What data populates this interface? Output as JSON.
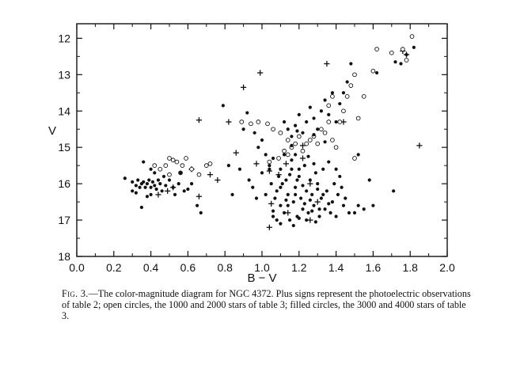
{
  "caption": {
    "label": "Fig. 3.",
    "text": "—The color-magnitude diagram for NGC 4372. Plus signs represent the photoelectric observations of table 2; open circles, the 1000 and 2000 stars of table 3; filled circles, the 3000 and 4000 stars of table 3."
  },
  "chart_data": {
    "type": "scatter",
    "xlabel": "B − V",
    "ylabel": "V",
    "xlim": [
      0.0,
      2.0
    ],
    "ylim": [
      18,
      11.6
    ],
    "y_inverted": true,
    "grid": false,
    "x_ticks": [
      "0.0",
      "0.2",
      "0.4",
      "0.6",
      "0.8",
      "1.0",
      "1.2",
      "1.4",
      "1.6",
      "1.8",
      "2.0"
    ],
    "y_ticks": [
      "12",
      "13",
      "14",
      "15",
      "16",
      "17",
      "18"
    ],
    "series": [
      {
        "marker": "plus",
        "points": [
          [
            0.66,
            14.25
          ],
          [
            0.82,
            14.3
          ],
          [
            0.9,
            13.35
          ],
          [
            0.99,
            12.95
          ],
          [
            0.86,
            15.15
          ],
          [
            0.97,
            15.45
          ],
          [
            0.72,
            15.75
          ],
          [
            0.76,
            15.9
          ],
          [
            0.66,
            16.35
          ],
          [
            0.62,
            15.6
          ],
          [
            0.44,
            16.3
          ],
          [
            0.49,
            16.2
          ],
          [
            0.52,
            16.1
          ],
          [
            1.04,
            15.65
          ],
          [
            1.09,
            15.75
          ],
          [
            1.22,
            15.3
          ],
          [
            1.26,
            16.0
          ],
          [
            1.3,
            16.5
          ],
          [
            1.26,
            17.0
          ],
          [
            1.14,
            16.8
          ],
          [
            1.05,
            16.55
          ],
          [
            1.04,
            17.2
          ],
          [
            1.22,
            14.95
          ],
          [
            1.35,
            12.7
          ],
          [
            1.44,
            14.3
          ],
          [
            1.76,
            12.35
          ],
          [
            1.78,
            12.45
          ],
          [
            1.85,
            14.95
          ],
          [
            1.13,
            15.45
          ]
        ]
      },
      {
        "marker": "open-circle",
        "points": [
          [
            0.42,
            15.5
          ],
          [
            0.45,
            15.6
          ],
          [
            0.48,
            15.5
          ],
          [
            0.5,
            15.3
          ],
          [
            0.52,
            15.35
          ],
          [
            0.54,
            15.4
          ],
          [
            0.57,
            15.5
          ],
          [
            0.59,
            15.3
          ],
          [
            0.62,
            15.6
          ],
          [
            0.66,
            15.75
          ],
          [
            0.7,
            15.5
          ],
          [
            0.72,
            15.45
          ],
          [
            0.56,
            15.7
          ],
          [
            0.5,
            15.75
          ],
          [
            0.89,
            14.3
          ],
          [
            0.94,
            14.35
          ],
          [
            0.98,
            14.3
          ],
          [
            1.03,
            14.35
          ],
          [
            1.06,
            14.5
          ],
          [
            1.1,
            14.6
          ],
          [
            1.14,
            14.8
          ],
          [
            1.16,
            15.0
          ],
          [
            1.18,
            14.9
          ],
          [
            1.2,
            14.7
          ],
          [
            1.22,
            15.1
          ],
          [
            1.24,
            14.9
          ],
          [
            1.26,
            14.8
          ],
          [
            1.28,
            14.7
          ],
          [
            1.3,
            14.9
          ],
          [
            1.32,
            14.5
          ],
          [
            1.34,
            14.6
          ],
          [
            1.36,
            14.3
          ],
          [
            1.38,
            14.8
          ],
          [
            1.4,
            15.0
          ],
          [
            1.42,
            14.3
          ],
          [
            1.44,
            14.0
          ],
          [
            1.46,
            13.6
          ],
          [
            1.48,
            13.3
          ],
          [
            1.5,
            13.0
          ],
          [
            1.52,
            14.2
          ],
          [
            1.55,
            13.6
          ],
          [
            1.6,
            12.9
          ],
          [
            1.62,
            12.3
          ],
          [
            1.7,
            12.4
          ],
          [
            1.76,
            12.3
          ],
          [
            1.78,
            12.6
          ],
          [
            1.81,
            11.95
          ],
          [
            1.09,
            15.3
          ],
          [
            1.12,
            15.1
          ],
          [
            1.14,
            15.2
          ],
          [
            1.04,
            15.4
          ],
          [
            1.36,
            13.85
          ],
          [
            1.5,
            15.3
          ],
          [
            1.38,
            13.6
          ]
        ]
      },
      {
        "marker": "filled-circle",
        "points": [
          [
            0.26,
            15.85
          ],
          [
            0.3,
            15.95
          ],
          [
            0.32,
            16.05
          ],
          [
            0.33,
            15.9
          ],
          [
            0.34,
            16.1
          ],
          [
            0.35,
            16.0
          ],
          [
            0.36,
            15.95
          ],
          [
            0.37,
            16.1
          ],
          [
            0.38,
            16.0
          ],
          [
            0.39,
            15.9
          ],
          [
            0.4,
            16.1
          ],
          [
            0.41,
            15.95
          ],
          [
            0.42,
            16.05
          ],
          [
            0.43,
            16.15
          ],
          [
            0.44,
            15.9
          ],
          [
            0.45,
            16.0
          ],
          [
            0.46,
            16.2
          ],
          [
            0.47,
            15.8
          ],
          [
            0.48,
            16.05
          ],
          [
            0.5,
            15.9
          ],
          [
            0.52,
            16.1
          ],
          [
            0.53,
            16.3
          ],
          [
            0.55,
            16.0
          ],
          [
            0.56,
            15.7
          ],
          [
            0.58,
            16.2
          ],
          [
            0.6,
            16.15
          ],
          [
            0.35,
            16.65
          ],
          [
            0.38,
            16.35
          ],
          [
            0.4,
            16.3
          ],
          [
            0.36,
            15.4
          ],
          [
            0.4,
            15.6
          ],
          [
            0.42,
            15.7
          ],
          [
            0.3,
            16.2
          ],
          [
            0.32,
            16.25
          ],
          [
            0.62,
            16.0
          ],
          [
            0.65,
            16.6
          ],
          [
            0.67,
            16.8
          ],
          [
            0.79,
            13.85
          ],
          [
            0.82,
            15.5
          ],
          [
            0.84,
            16.3
          ],
          [
            0.88,
            15.6
          ],
          [
            0.9,
            14.5
          ],
          [
            0.92,
            14.05
          ],
          [
            0.96,
            14.6
          ],
          [
            0.98,
            15.0
          ],
          [
            1.0,
            14.8
          ],
          [
            1.02,
            15.2
          ],
          [
            1.04,
            15.6
          ],
          [
            1.05,
            16.0
          ],
          [
            1.06,
            15.3
          ],
          [
            1.07,
            16.4
          ],
          [
            1.08,
            16.2
          ],
          [
            1.09,
            15.8
          ],
          [
            1.1,
            16.6
          ],
          [
            1.11,
            16.0
          ],
          [
            1.12,
            16.8
          ],
          [
            1.13,
            15.9
          ],
          [
            1.14,
            16.3
          ],
          [
            1.15,
            17.0
          ],
          [
            1.16,
            15.6
          ],
          [
            1.17,
            16.5
          ],
          [
            1.18,
            16.1
          ],
          [
            1.19,
            16.9
          ],
          [
            1.2,
            15.8
          ],
          [
            1.21,
            16.4
          ],
          [
            1.22,
            16.7
          ],
          [
            1.23,
            15.5
          ],
          [
            1.24,
            16.2
          ],
          [
            1.25,
            16.8
          ],
          [
            1.26,
            15.9
          ],
          [
            1.27,
            16.3
          ],
          [
            1.28,
            16.6
          ],
          [
            1.29,
            15.7
          ],
          [
            1.3,
            16.0
          ],
          [
            1.31,
            16.9
          ],
          [
            1.32,
            16.4
          ],
          [
            1.33,
            15.6
          ],
          [
            1.34,
            16.7
          ],
          [
            1.35,
            16.2
          ],
          [
            1.36,
            15.4
          ],
          [
            1.37,
            16.8
          ],
          [
            1.38,
            16.5
          ],
          [
            1.39,
            16.0
          ],
          [
            1.4,
            16.9
          ],
          [
            1.41,
            16.3
          ],
          [
            1.42,
            15.8
          ],
          [
            1.44,
            16.6
          ],
          [
            1.45,
            16.4
          ],
          [
            1.47,
            16.8
          ],
          [
            1.5,
            16.8
          ],
          [
            1.52,
            16.6
          ],
          [
            1.55,
            16.7
          ],
          [
            1.58,
            15.9
          ],
          [
            1.12,
            14.3
          ],
          [
            1.14,
            14.5
          ],
          [
            1.16,
            14.7
          ],
          [
            1.18,
            14.4
          ],
          [
            1.2,
            14.1
          ],
          [
            1.22,
            14.6
          ],
          [
            1.24,
            14.3
          ],
          [
            1.26,
            13.9
          ],
          [
            1.28,
            14.2
          ],
          [
            1.3,
            14.5
          ],
          [
            1.32,
            14.0
          ],
          [
            1.34,
            13.7
          ],
          [
            1.36,
            14.1
          ],
          [
            1.38,
            13.5
          ],
          [
            1.4,
            14.3
          ],
          [
            1.42,
            13.8
          ],
          [
            1.44,
            13.5
          ],
          [
            1.46,
            13.2
          ],
          [
            1.48,
            12.7
          ],
          [
            1.52,
            15.2
          ],
          [
            1.62,
            12.95
          ],
          [
            1.72,
            12.65
          ],
          [
            1.75,
            12.7
          ],
          [
            1.78,
            12.45
          ],
          [
            1.82,
            12.25
          ],
          [
            1.71,
            16.2
          ],
          [
            1.6,
            16.6
          ],
          [
            1.1,
            15.6
          ],
          [
            1.06,
            16.9
          ],
          [
            1.08,
            17.0
          ],
          [
            1.12,
            15.2
          ],
          [
            1.16,
            15.35
          ],
          [
            1.2,
            16.95
          ],
          [
            1.24,
            17.0
          ],
          [
            1.1,
            16.1
          ],
          [
            1.14,
            16.6
          ],
          [
            1.18,
            16.3
          ],
          [
            1.22,
            16.05
          ],
          [
            1.26,
            16.45
          ],
          [
            1.3,
            16.15
          ],
          [
            1.15,
            15.75
          ],
          [
            1.19,
            15.9
          ],
          [
            1.23,
            16.55
          ],
          [
            1.27,
            16.75
          ],
          [
            1.31,
            16.7
          ],
          [
            1.0,
            15.7
          ],
          [
            1.02,
            16.3
          ],
          [
            1.04,
            15.5
          ],
          [
            1.2,
            15.6
          ],
          [
            1.28,
            15.45
          ],
          [
            1.18,
            15.2
          ],
          [
            1.25,
            15.25
          ],
          [
            1.13,
            16.45
          ],
          [
            1.33,
            16.3
          ],
          [
            1.36,
            16.55
          ],
          [
            1.1,
            17.1
          ],
          [
            1.17,
            17.15
          ],
          [
            1.29,
            17.05
          ],
          [
            1.06,
            16.75
          ],
          [
            0.95,
            16.1
          ],
          [
            0.97,
            16.4
          ],
          [
            0.93,
            15.9
          ],
          [
            1.4,
            15.6
          ],
          [
            1.43,
            16.1
          ],
          [
            1.34,
            14.85
          ],
          [
            1.28,
            14.65
          ],
          [
            1.19,
            14.55
          ],
          [
            1.16,
            14.95
          ]
        ]
      }
    ]
  }
}
